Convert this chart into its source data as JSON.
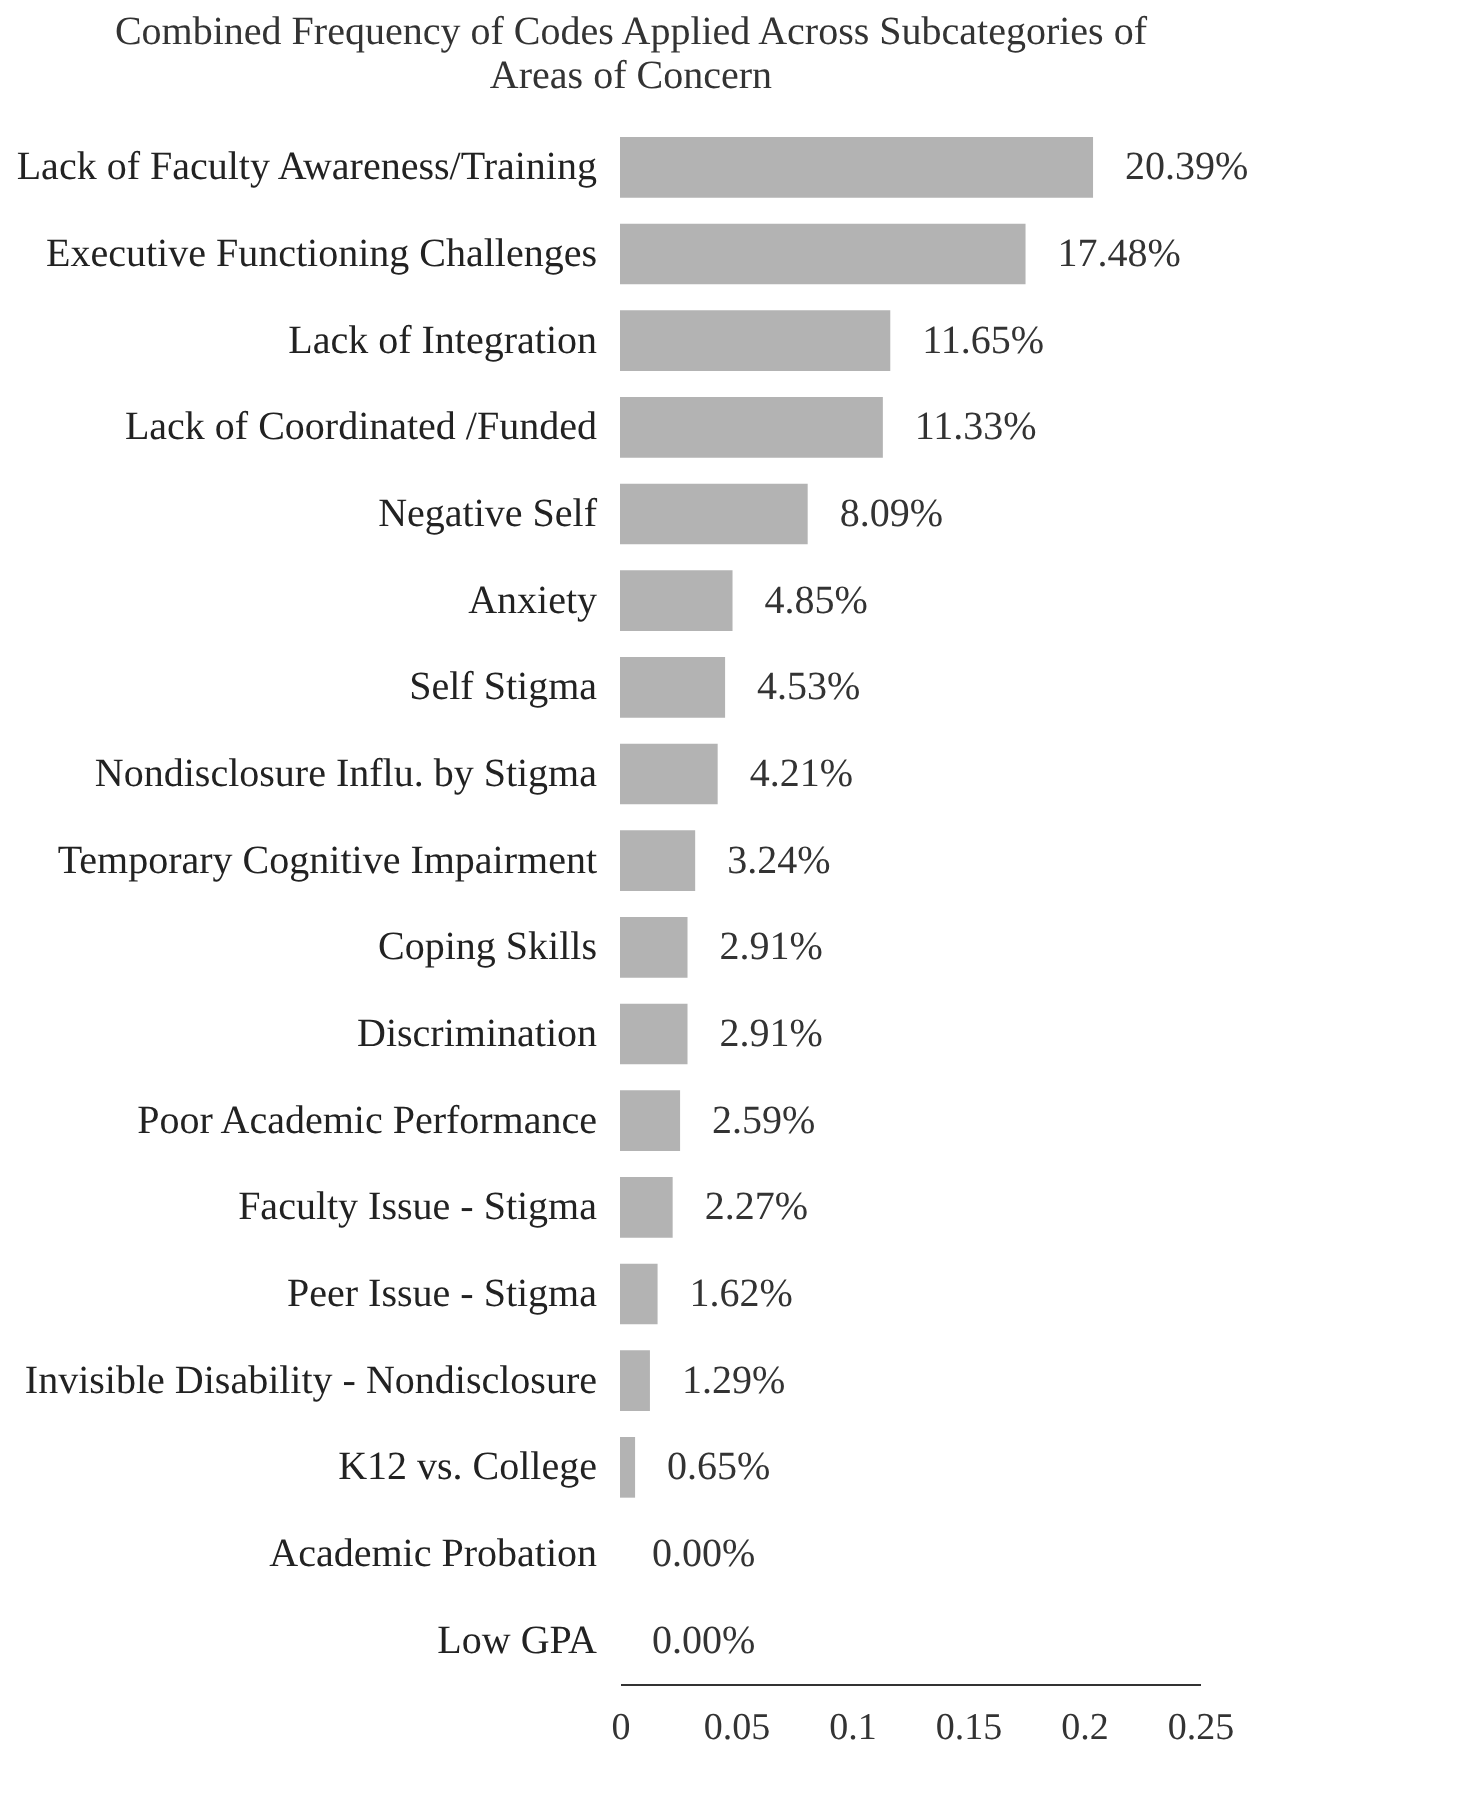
{
  "chart_data": {
    "type": "bar",
    "orientation": "horizontal",
    "title": "Combined Frequency of Codes Applied Across Subcategories of",
    "subtitle": "Areas of Concern",
    "categories": [
      "Lack of Faculty Awareness/Training",
      "Executive Functioning Challenges",
      "Lack of Integration",
      "Lack of Coordinated /Funded",
      "Negative Self",
      "Anxiety",
      "Self Stigma",
      "Nondisclosure Influ. by Stigma",
      "Temporary Cognitive Impairment",
      "Coping Skills",
      "Discrimination",
      "Poor Academic Performance",
      "Faculty Issue - Stigma",
      "Peer Issue - Stigma",
      "Invisible Disability - Nondisclosure",
      "K12 vs. College",
      "Academic Probation",
      "Low GPA"
    ],
    "values": [
      0.2039,
      0.1748,
      0.1165,
      0.1133,
      0.0809,
      0.0485,
      0.0453,
      0.0421,
      0.0324,
      0.0291,
      0.0291,
      0.0259,
      0.0227,
      0.0162,
      0.0129,
      0.0065,
      0,
      0
    ],
    "value_labels": [
      "20.39%",
      "17.48%",
      "11.65%",
      "11.33%",
      "8.09%",
      "4.85%",
      "4.53%",
      "4.21%",
      "3.24%",
      "2.91%",
      "2.91%",
      "2.59%",
      "2.27%",
      "1.62%",
      "1.29%",
      "0.65%",
      "0.00%",
      "0.00%"
    ],
    "color": "#b3b3b3",
    "xlim": [
      0,
      0.25
    ],
    "xticks": [
      0,
      0.05,
      0.1,
      0.15,
      0.2,
      0.25
    ],
    "grid": false
  }
}
